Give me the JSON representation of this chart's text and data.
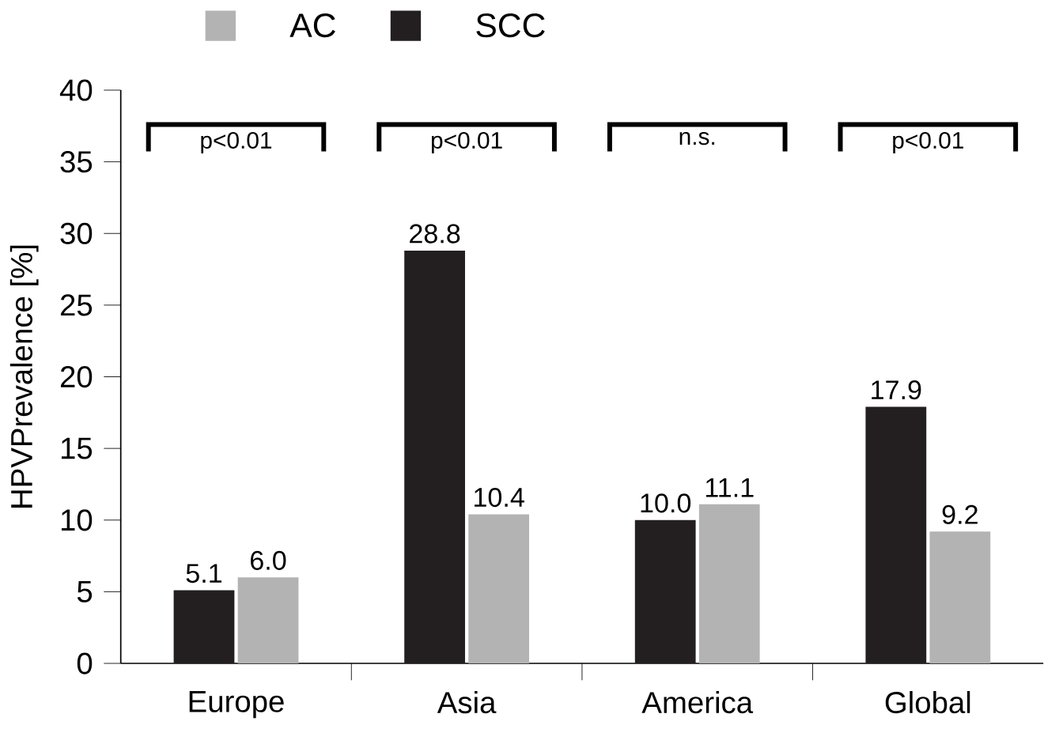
{
  "chart_data": {
    "type": "bar",
    "ylabel": "HPVPrevalence [%]",
    "categories": [
      "Europe",
      "Asia",
      "America",
      "Global"
    ],
    "series": [
      {
        "name": "SCC",
        "color": "#231f20",
        "values": [
          5.1,
          28.8,
          10.0,
          17.9
        ],
        "value_labels": [
          "5.1",
          "28.8",
          "10.0",
          "17.9"
        ]
      },
      {
        "name": "AC",
        "color": "#b3b3b3",
        "values": [
          6.0,
          10.4,
          11.1,
          9.2
        ],
        "value_labels": [
          "6.0",
          "10.4",
          "11.1",
          "9.2"
        ]
      }
    ],
    "ylim": [
      0,
      40
    ],
    "yticks": [
      0,
      5,
      10,
      15,
      20,
      25,
      30,
      35,
      40
    ],
    "grid": false,
    "legend": "top left",
    "annotations": [
      "p<0.01",
      "p<0.01",
      "n.s.",
      "p<0.01"
    ]
  }
}
